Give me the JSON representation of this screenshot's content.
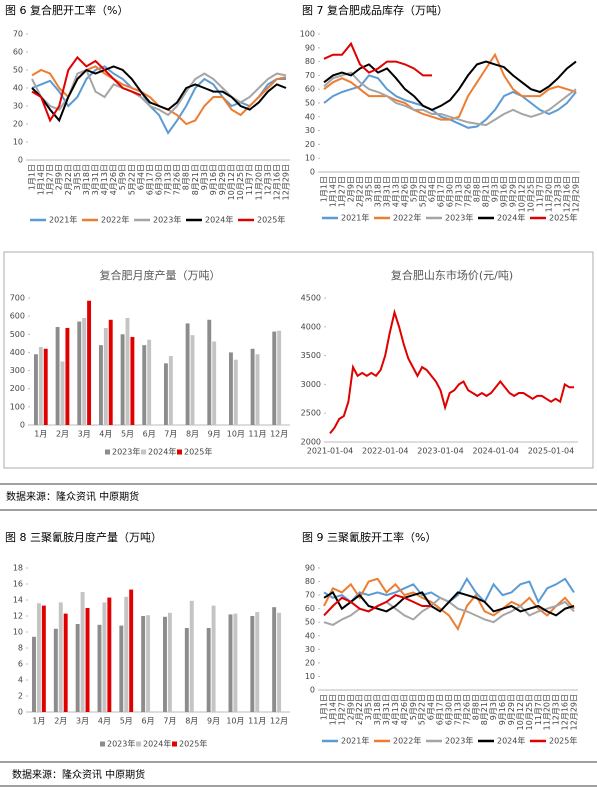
{
  "chart_data": [
    {
      "type": "line",
      "caption": "图 6  复合肥开工率（%）",
      "categories": [
        "1月1日",
        "1月14日",
        "1月27日",
        "2月9日",
        "2月22日",
        "3月5日",
        "3月18日",
        "3月31日",
        "4月13日",
        "4月26日",
        "5月9日",
        "5月22日",
        "6月4日",
        "6月17日",
        "6月30日",
        "7月13日",
        "7月26日",
        "8月8日",
        "8月21日",
        "9月3日",
        "9月16日",
        "9月29日",
        "10月12日",
        "10月25日",
        "11月7日",
        "11月20日",
        "12月3日",
        "12月16日",
        "12月29日"
      ],
      "ylim": [
        0,
        70
      ],
      "yticks": [
        0,
        10,
        20,
        30,
        40,
        50,
        60,
        70
      ],
      "series": [
        {
          "name": "2021年",
          "color": "#5b9bd5",
          "values": [
            40,
            42,
            44,
            38,
            30,
            35,
            45,
            50,
            52,
            48,
            45,
            40,
            38,
            30,
            25,
            15,
            22,
            30,
            40,
            45,
            42,
            35,
            30,
            32,
            30,
            35,
            42,
            45,
            45
          ]
        },
        {
          "name": "2022年",
          "color": "#ed7d31",
          "values": [
            47,
            50,
            48,
            40,
            35,
            45,
            50,
            52,
            48,
            45,
            42,
            40,
            38,
            35,
            30,
            28,
            25,
            20,
            22,
            30,
            35,
            35,
            28,
            25,
            30,
            35,
            40,
            45,
            46
          ]
        },
        {
          "name": "2023年",
          "color": "#a5a5a5",
          "values": [
            45,
            35,
            30,
            28,
            35,
            48,
            50,
            38,
            35,
            42,
            40,
            38,
            35,
            30,
            28,
            25,
            30,
            38,
            45,
            48,
            45,
            40,
            35,
            32,
            35,
            40,
            45,
            48,
            47
          ]
        },
        {
          "name": "2024年",
          "color": "#000000",
          "values": [
            40,
            35,
            28,
            22,
            35,
            45,
            50,
            48,
            50,
            52,
            50,
            45,
            38,
            32,
            30,
            28,
            32,
            40,
            42,
            40,
            38,
            38,
            35,
            30,
            28,
            32,
            38,
            42,
            40
          ]
        },
        {
          "name": "2025年",
          "color": "#e00000",
          "values": [
            38,
            35,
            22,
            30,
            50,
            57,
            52,
            55,
            50,
            45,
            40,
            38,
            36,
            null,
            null,
            null,
            null,
            null,
            null,
            null,
            null,
            null,
            null,
            null,
            null,
            null,
            null,
            null,
            null
          ]
        }
      ]
    },
    {
      "type": "line",
      "caption": "图 7  复合肥成品库存（万吨）",
      "categories": [
        "1月1日",
        "1月14日",
        "1月27日",
        "2月9日",
        "2月22日",
        "3月5日",
        "3月18日",
        "3月31日",
        "4月13日",
        "4月26日",
        "5月9日",
        "5月22日",
        "6月4日",
        "6月17日",
        "6月30日",
        "7月13日",
        "7月26日",
        "8月8日",
        "8月21日",
        "9月3日",
        "9月16日",
        "9月29日",
        "10月12日",
        "10月25日",
        "11月7日",
        "11月20日",
        "12月3日",
        "12月16日",
        "12月29日"
      ],
      "ylim": [
        0,
        100
      ],
      "yticks": [
        0,
        10,
        20,
        30,
        40,
        50,
        60,
        70,
        80,
        90,
        100
      ],
      "series": [
        {
          "name": "2021年",
          "color": "#5b9bd5",
          "values": [
            50,
            55,
            58,
            60,
            62,
            70,
            68,
            60,
            55,
            52,
            50,
            48,
            45,
            40,
            38,
            35,
            32,
            33,
            38,
            45,
            55,
            58,
            55,
            50,
            45,
            42,
            45,
            50,
            58
          ]
        },
        {
          "name": "2022年",
          "color": "#ed7d31",
          "values": [
            60,
            65,
            68,
            65,
            60,
            55,
            55,
            55,
            52,
            50,
            45,
            42,
            40,
            38,
            38,
            40,
            55,
            65,
            75,
            85,
            70,
            60,
            55,
            55,
            55,
            60,
            62,
            60,
            58
          ]
        },
        {
          "name": "2023年",
          "color": "#a5a5a5",
          "values": [
            62,
            68,
            70,
            72,
            65,
            60,
            58,
            55,
            50,
            48,
            45,
            45,
            42,
            42,
            40,
            38,
            36,
            35,
            34,
            38,
            42,
            45,
            42,
            40,
            42,
            45,
            50,
            55,
            60
          ]
        },
        {
          "name": "2024年",
          "color": "#000000",
          "values": [
            65,
            70,
            72,
            70,
            75,
            78,
            72,
            75,
            68,
            60,
            55,
            48,
            45,
            48,
            52,
            60,
            70,
            78,
            80,
            78,
            76,
            70,
            65,
            60,
            58,
            62,
            68,
            75,
            80
          ]
        },
        {
          "name": "2025年",
          "color": "#e00000",
          "values": [
            82,
            85,
            85,
            93,
            78,
            72,
            75,
            80,
            80,
            78,
            75,
            70,
            70,
            null,
            null,
            null,
            null,
            null,
            null,
            null,
            null,
            null,
            null,
            null,
            null,
            null,
            null,
            null,
            null
          ]
        }
      ]
    },
    {
      "type": "bar",
      "title": "复合肥月度产量（万吨）",
      "categories": [
        "1月",
        "2月",
        "3月",
        "4月",
        "5月",
        "6月",
        "7月",
        "8月",
        "9月",
        "10月",
        "11月",
        "12月"
      ],
      "ylim": [
        0,
        700
      ],
      "yticks": [
        0,
        100,
        200,
        300,
        400,
        500,
        600,
        700
      ],
      "series": [
        {
          "name": "2023年",
          "color": "#8c8c8c",
          "values": [
            390,
            540,
            570,
            440,
            500,
            440,
            340,
            560,
            580,
            400,
            420,
            515
          ]
        },
        {
          "name": "2024年",
          "color": "#c4c4c4",
          "values": [
            430,
            350,
            590,
            535,
            590,
            470,
            380,
            495,
            460,
            360,
            390,
            520
          ]
        },
        {
          "name": "2025年",
          "color": "#e00000",
          "values": [
            420,
            535,
            685,
            580,
            485,
            null,
            null,
            null,
            null,
            null,
            null,
            null
          ]
        }
      ]
    },
    {
      "type": "line",
      "title": "复合肥山东市场价(元/吨)",
      "categories": [
        "2021-01-04",
        null,
        null,
        null,
        null,
        null,
        null,
        null,
        null,
        null,
        null,
        null,
        "2022-01-04",
        null,
        null,
        null,
        null,
        null,
        null,
        null,
        null,
        null,
        null,
        null,
        "2023-01-04",
        null,
        null,
        null,
        null,
        null,
        null,
        null,
        null,
        null,
        null,
        null,
        "2024-01-04",
        null,
        null,
        null,
        null,
        null,
        null,
        null,
        null,
        null,
        null,
        null,
        "2025-01-04",
        null,
        null,
        null,
        null,
        null
      ],
      "ylim": [
        2000,
        4500
      ],
      "yticks": [
        2000,
        2500,
        3000,
        3500,
        4000,
        4500
      ],
      "color": "#e00000",
      "values": [
        2150,
        2250,
        2400,
        2450,
        2700,
        3300,
        3150,
        3200,
        3150,
        3200,
        3150,
        3250,
        3500,
        3900,
        4250,
        4000,
        3700,
        3450,
        3300,
        3150,
        3300,
        3250,
        3150,
        3050,
        2900,
        2600,
        2850,
        2900,
        3000,
        3050,
        2900,
        2850,
        2800,
        2850,
        2800,
        2850,
        2950,
        3050,
        2950,
        2850,
        2800,
        2850,
        2850,
        2800,
        2750,
        2800,
        2800,
        2750,
        2700,
        2750,
        2700,
        3000,
        2950,
        2950
      ]
    },
    {
      "type": "bar",
      "caption": "图 8  三聚氰胺月度产量（万吨）",
      "categories": [
        "1月",
        "2月",
        "3月",
        "4月",
        "5月",
        "6月",
        "7月",
        "8月",
        "9月",
        "10月",
        "11月",
        "12月"
      ],
      "ylim": [
        0,
        18
      ],
      "yticks": [
        0,
        2,
        4,
        6,
        8,
        10,
        12,
        14,
        16,
        18
      ],
      "series": [
        {
          "name": "2023年",
          "color": "#8c8c8c",
          "values": [
            9.4,
            10.4,
            11.0,
            10.9,
            10.8,
            12.0,
            11.9,
            10.5,
            10.5,
            12.2,
            12.0,
            13.1
          ]
        },
        {
          "name": "2024年",
          "color": "#c4c4c4",
          "values": [
            13.6,
            13.7,
            15.0,
            13.7,
            14.4,
            12.1,
            12.4,
            13.9,
            13.3,
            12.3,
            12.5,
            12.4
          ]
        },
        {
          "name": "2025年",
          "color": "#e00000",
          "values": [
            13.3,
            12.3,
            13.0,
            14.3,
            15.3,
            null,
            null,
            null,
            null,
            null,
            null,
            null
          ]
        }
      ]
    },
    {
      "type": "line",
      "caption": "图 9  三聚氰胺开工率（%）",
      "categories": [
        "1月1日",
        "1月14日",
        "1月27日",
        "2月9日",
        "2月22日",
        "3月5日",
        "3月18日",
        "3月31日",
        "4月13日",
        "4月26日",
        "5月9日",
        "5月22日",
        "6月4日",
        "6月17日",
        "6月30日",
        "7月13日",
        "7月26日",
        "8月8日",
        "8月21日",
        "9月3日",
        "9月16日",
        "9月29日",
        "10月12日",
        "10月25日",
        "11月7日",
        "11月20日",
        "12月3日",
        "12月16日",
        "12月29日"
      ],
      "ylim": [
        0,
        90
      ],
      "yticks": [
        0,
        10,
        20,
        30,
        40,
        50,
        60,
        70,
        80,
        90
      ],
      "series": [
        {
          "name": "2021年",
          "color": "#5b9bd5",
          "values": [
            72,
            68,
            70,
            65,
            72,
            70,
            72,
            70,
            72,
            75,
            78,
            70,
            72,
            68,
            65,
            70,
            82,
            72,
            65,
            78,
            70,
            72,
            78,
            80,
            65,
            75,
            78,
            82,
            72
          ]
        },
        {
          "name": "2022年",
          "color": "#ed7d31",
          "values": [
            62,
            75,
            72,
            78,
            68,
            80,
            82,
            72,
            78,
            70,
            72,
            68,
            65,
            60,
            55,
            45,
            62,
            70,
            58,
            55,
            60,
            65,
            62,
            68,
            60,
            55,
            62,
            68,
            60
          ]
        },
        {
          "name": "2023年",
          "color": "#a5a5a5",
          "values": [
            50,
            48,
            52,
            55,
            60,
            58,
            62,
            65,
            60,
            55,
            52,
            58,
            62,
            68,
            65,
            60,
            58,
            55,
            52,
            50,
            55,
            58,
            62,
            55,
            58,
            60,
            62,
            65,
            58
          ]
        },
        {
          "name": "2024年",
          "color": "#000000",
          "values": [
            68,
            72,
            60,
            65,
            70,
            62,
            60,
            58,
            62,
            68,
            70,
            72,
            62,
            58,
            65,
            72,
            70,
            68,
            65,
            58,
            60,
            62,
            58,
            60,
            62,
            58,
            55,
            60,
            62
          ]
        },
        {
          "name": "2025年",
          "color": "#e00000",
          "values": [
            55,
            62,
            68,
            65,
            60,
            58,
            62,
            65,
            70,
            68,
            65,
            62,
            62,
            null,
            null,
            null,
            null,
            null,
            null,
            null,
            null,
            null,
            null,
            null,
            null,
            null,
            null,
            null,
            null
          ]
        }
      ]
    }
  ],
  "sources": [
    "数据来源：隆众资讯 中原期货",
    "数据来源：隆众资讯 中原期货"
  ]
}
